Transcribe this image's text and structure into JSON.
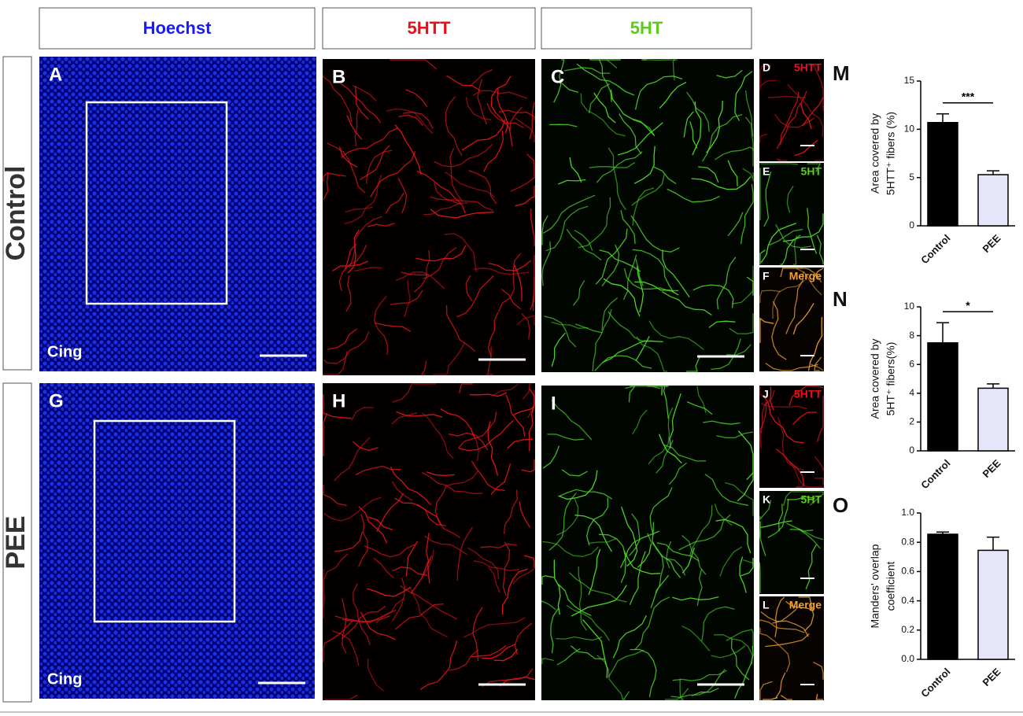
{
  "figure": {
    "headers": [
      "Hoechst",
      "5HTT",
      "5HT"
    ],
    "rows": [
      "Control",
      "PEE"
    ],
    "panels": [
      {
        "letter": "A",
        "label": "Cing"
      },
      {
        "letter": "B"
      },
      {
        "letter": "C"
      },
      {
        "letter": "D",
        "label": "5HTT"
      },
      {
        "letter": "E",
        "label": "5HT"
      },
      {
        "letter": "F",
        "label": "Merge"
      },
      {
        "letter": "G",
        "label": "Cing"
      },
      {
        "letter": "H"
      },
      {
        "letter": "I"
      },
      {
        "letter": "J",
        "label": "5HTT"
      },
      {
        "letter": "K",
        "label": "5HT"
      },
      {
        "letter": "L",
        "label": "Merge"
      }
    ]
  },
  "chart_data": [
    {
      "type": "bar",
      "label": "M",
      "y_label": [
        "Area covered by",
        "5HTT⁺ fibers (%)"
      ],
      "categories": [
        "Control",
        "PEE"
      ],
      "values": [
        10.7,
        5.3
      ],
      "errors": [
        0.9,
        0.4
      ],
      "colors": [
        "#000000",
        "#e6e6fa"
      ],
      "ylim": [
        0,
        15
      ],
      "yticks": [
        0,
        5,
        10,
        15
      ],
      "significance": "***"
    },
    {
      "type": "bar",
      "label": "N",
      "y_label": [
        "Area covered by",
        "5HT⁺ fibers(%)"
      ],
      "categories": [
        "Control",
        "PEE"
      ],
      "values": [
        7.5,
        4.35
      ],
      "errors": [
        1.4,
        0.3
      ],
      "colors": [
        "#000000",
        "#e6e6fa"
      ],
      "ylim": [
        0,
        10
      ],
      "yticks": [
        0,
        2,
        4,
        6,
        8,
        10
      ],
      "significance": "*"
    },
    {
      "type": "bar",
      "label": "O",
      "y_label": [
        "Manders' overlap",
        "coefficient"
      ],
      "categories": [
        "Control",
        "PEE"
      ],
      "values": [
        0.855,
        0.745
      ],
      "errors": [
        0.015,
        0.09
      ],
      "colors": [
        "#000000",
        "#e6e6fa"
      ],
      "ylim": [
        0,
        1
      ],
      "yticks": [
        {
          "value": 0,
          "label": "0.0"
        },
        0.2,
        0.4,
        0.6,
        0.8,
        {
          "value": 1,
          "label": "1.0"
        }
      ]
    }
  ]
}
